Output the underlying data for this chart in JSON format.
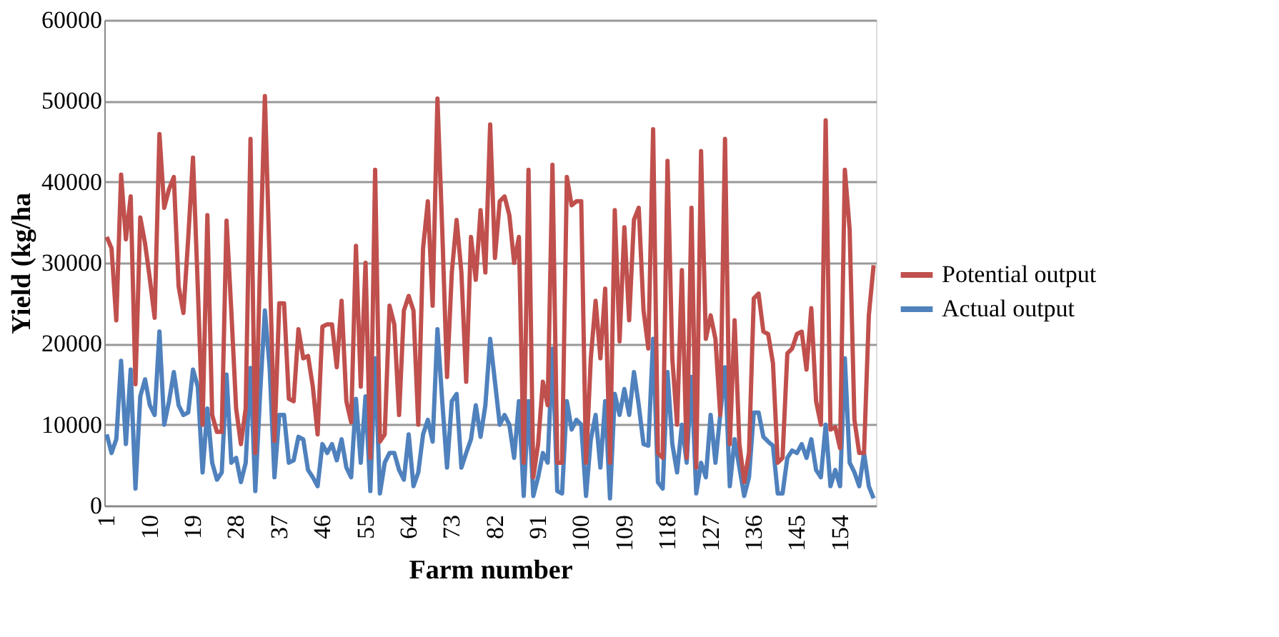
{
  "chart_data": {
    "type": "line",
    "xlabel": "Farm number",
    "ylabel": "Yield (kg/ha",
    "ylim": [
      0,
      60000
    ],
    "yticks": [
      0,
      10000,
      20000,
      30000,
      40000,
      50000,
      60000
    ],
    "grid": "y",
    "legend": "right",
    "line_style": "solid",
    "marker": "none",
    "categories": [
      "1",
      null,
      null,
      null,
      null,
      null,
      null,
      null,
      null,
      "10",
      null,
      null,
      null,
      null,
      null,
      null,
      null,
      null,
      "19",
      null,
      null,
      null,
      null,
      null,
      null,
      null,
      null,
      "28",
      null,
      null,
      null,
      null,
      null,
      null,
      null,
      null,
      "37",
      null,
      null,
      null,
      null,
      null,
      null,
      null,
      null,
      "46",
      null,
      null,
      null,
      null,
      null,
      null,
      null,
      null,
      "55",
      null,
      null,
      null,
      null,
      null,
      null,
      null,
      null,
      "64",
      null,
      null,
      null,
      null,
      null,
      null,
      null,
      null,
      "73",
      null,
      null,
      null,
      null,
      null,
      null,
      null,
      null,
      "82",
      null,
      null,
      null,
      null,
      null,
      null,
      null,
      null,
      "91",
      null,
      null,
      null,
      null,
      null,
      null,
      null,
      null,
      "100",
      null,
      null,
      null,
      null,
      null,
      null,
      null,
      null,
      "109",
      null,
      null,
      null,
      null,
      null,
      null,
      null,
      null,
      "118",
      null,
      null,
      null,
      null,
      null,
      null,
      null,
      null,
      "127",
      null,
      null,
      null,
      null,
      null,
      null,
      null,
      null,
      "136",
      null,
      null,
      null,
      null,
      null,
      null,
      null,
      null,
      "145",
      null,
      null,
      null,
      null,
      null,
      null,
      null,
      null,
      "154",
      null,
      null,
      null,
      null,
      null,
      null,
      null
    ],
    "series": [
      {
        "name": "Potential output",
        "color": "#c0504d",
        "values": [
          33200,
          31800,
          22900,
          40900,
          32900,
          38200,
          15000,
          35600,
          32400,
          28000,
          23200,
          45900,
          36800,
          39100,
          40600,
          27100,
          23800,
          33000,
          43000,
          27000,
          10000,
          35900,
          11200,
          9100,
          9100,
          35200,
          24000,
          12000,
          7600,
          12000,
          45300,
          6500,
          30000,
          50600,
          30000,
          8000,
          25000,
          25000,
          13200,
          12900,
          21800,
          18200,
          18500,
          14700,
          8800,
          22100,
          22400,
          22400,
          17100,
          25300,
          12900,
          10300,
          32100,
          14700,
          30000,
          5900,
          41500,
          7900,
          8800,
          24700,
          22400,
          11200,
          24100,
          25900,
          24100,
          10000,
          31800,
          37600,
          24700,
          50300,
          34100,
          15900,
          28800,
          35300,
          28800,
          15300,
          33200,
          27900,
          36500,
          28800,
          47100,
          30600,
          37600,
          38200,
          35900,
          30000,
          33200,
          5300,
          41500,
          3500,
          7600,
          15300,
          12400,
          42100,
          5300,
          5300,
          40600,
          37100,
          37600,
          37600,
          5300,
          18200,
          25300,
          18200,
          26800,
          5300,
          36500,
          20300,
          34400,
          22900,
          35300,
          36800,
          24100,
          19400,
          46500,
          6500,
          5900,
          42600,
          18200,
          10000,
          29100,
          5900,
          36800,
          4700,
          43800,
          20600,
          23500,
          20600,
          11200,
          45300,
          7600,
          22900,
          7600,
          2900,
          6500,
          25600,
          26200,
          21500,
          21200,
          17600,
          5300,
          5900,
          18800,
          19400,
          21200,
          21500,
          16800,
          24400,
          12900,
          10000,
          47600,
          9400,
          9700,
          7100,
          41500,
          34100,
          10600,
          6500,
          6500,
          23500,
          29700
        ]
      },
      {
        "name": "Actual output",
        "color": "#4f81bd",
        "values": [
          8800,
          6500,
          8200,
          17900,
          7600,
          16800,
          2100,
          13500,
          15600,
          12400,
          11200,
          21500,
          10000,
          12900,
          16500,
          12400,
          11200,
          11500,
          16800,
          14700,
          4100,
          12000,
          5300,
          3200,
          4100,
          16200,
          5300,
          5900,
          2900,
          5300,
          17000,
          1800,
          13800,
          24100,
          17000,
          3500,
          11200,
          11200,
          5300,
          5600,
          8500,
          8200,
          4400,
          3500,
          2400,
          7600,
          6500,
          7600,
          5600,
          8200,
          4700,
          3500,
          13200,
          5300,
          13500,
          1800,
          18200,
          1500,
          5300,
          6500,
          6500,
          4400,
          3200,
          8800,
          2400,
          4100,
          8800,
          10600,
          7900,
          21800,
          12900,
          4700,
          12900,
          13800,
          4700,
          6500,
          8200,
          12400,
          8500,
          12400,
          20600,
          15300,
          10000,
          11200,
          10000,
          5900,
          12900,
          1200,
          12900,
          1200,
          3500,
          6500,
          5300,
          19400,
          1800,
          1500,
          12900,
          9400,
          10600,
          10000,
          1200,
          8200,
          11200,
          4700,
          12900,
          900,
          13800,
          11200,
          14400,
          11200,
          16500,
          12400,
          7600,
          7400,
          20600,
          2900,
          2100,
          16500,
          7600,
          4100,
          10000,
          5300,
          15900,
          1500,
          5300,
          3500,
          11200,
          5300,
          11200,
          17100,
          2400,
          8200,
          4700,
          1200,
          3500,
          11500,
          11500,
          8500,
          7900,
          7400,
          1500,
          1500,
          5900,
          6800,
          6500,
          7600,
          5900,
          8200,
          4400,
          3500,
          10000,
          2400,
          4400,
          2400,
          18200,
          5300,
          4100,
          2400,
          6500,
          2400,
          900
        ]
      }
    ]
  }
}
